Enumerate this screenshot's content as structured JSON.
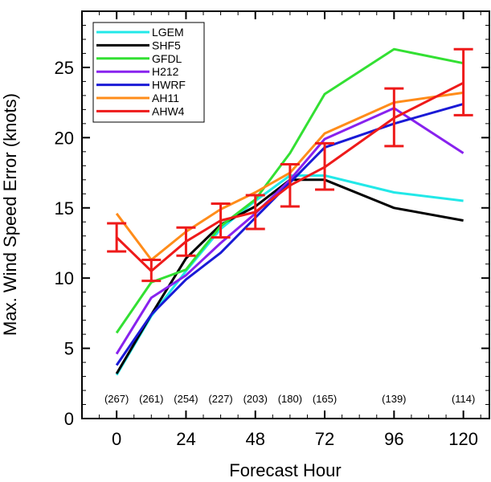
{
  "chart_data": {
    "type": "line",
    "xlabel": "Forecast Hour",
    "ylabel": "Max. Wind Speed Error (knots)",
    "xlim": [
      -12,
      129
    ],
    "ylim": [
      0,
      29
    ],
    "xticks": [
      0,
      24,
      48,
      72,
      96,
      120
    ],
    "yticks": [
      0,
      5,
      10,
      15,
      20,
      25
    ],
    "sample_counts": [
      {
        "x": 0,
        "label": "(267)"
      },
      {
        "x": 12,
        "label": "(261)"
      },
      {
        "x": 24,
        "label": "(254)"
      },
      {
        "x": 36,
        "label": "(227)"
      },
      {
        "x": 48,
        "label": "(203)"
      },
      {
        "x": 60,
        "label": "(180)"
      },
      {
        "x": 72,
        "label": "(165)"
      },
      {
        "x": 96,
        "label": "(139)"
      },
      {
        "x": 120,
        "label": "(114)"
      }
    ],
    "legend_position": "top-left",
    "x": [
      0,
      12,
      24,
      36,
      48,
      60,
      72,
      96,
      120
    ],
    "series": [
      {
        "name": "LGEM",
        "color": "#22e8e8",
        "values": [
          3.1,
          7.3,
          10.5,
          13.5,
          15.5,
          17.3,
          17.3,
          16.1,
          15.5
        ]
      },
      {
        "name": "SHF5",
        "color": "#000000",
        "values": [
          3.2,
          7.4,
          11.4,
          13.8,
          15.1,
          17.0,
          17.0,
          15.0,
          14.1
        ]
      },
      {
        "name": "GFDL",
        "color": "#33e033",
        "values": [
          6.1,
          9.7,
          10.6,
          13.7,
          15.6,
          18.9,
          23.1,
          26.3,
          25.3
        ]
      },
      {
        "name": "H212",
        "color": "#8822ee",
        "values": [
          4.6,
          8.6,
          10.2,
          12.5,
          14.6,
          17.0,
          19.9,
          22.1,
          18.9
        ]
      },
      {
        "name": "HWRF",
        "color": "#1a1ad6",
        "values": [
          3.8,
          7.4,
          9.9,
          11.8,
          14.3,
          16.8,
          19.3,
          21.0,
          22.4
        ]
      },
      {
        "name": "AH11",
        "color": "#ff8c1a",
        "values": [
          14.6,
          11.3,
          13.3,
          14.9,
          16.1,
          17.5,
          20.3,
          22.5,
          23.2
        ]
      },
      {
        "name": "AHW4",
        "color": "#ee1a1a",
        "values": [
          12.9,
          10.5,
          12.6,
          14.1,
          14.7,
          16.6,
          17.9,
          21.4,
          23.9
        ]
      }
    ],
    "error_bars": {
      "series": "AHW4",
      "color": "#ee1a1a",
      "points": [
        {
          "x": 0,
          "low": 11.9,
          "high": 13.9
        },
        {
          "x": 12,
          "low": 9.8,
          "high": 11.3
        },
        {
          "x": 24,
          "low": 11.6,
          "high": 13.6
        },
        {
          "x": 36,
          "low": 12.9,
          "high": 15.3
        },
        {
          "x": 48,
          "low": 13.5,
          "high": 15.9
        },
        {
          "x": 60,
          "low": 15.1,
          "high": 18.1
        },
        {
          "x": 72,
          "low": 16.3,
          "high": 19.6
        },
        {
          "x": 96,
          "low": 19.4,
          "high": 23.5
        },
        {
          "x": 120,
          "low": 21.6,
          "high": 26.3
        }
      ]
    }
  }
}
